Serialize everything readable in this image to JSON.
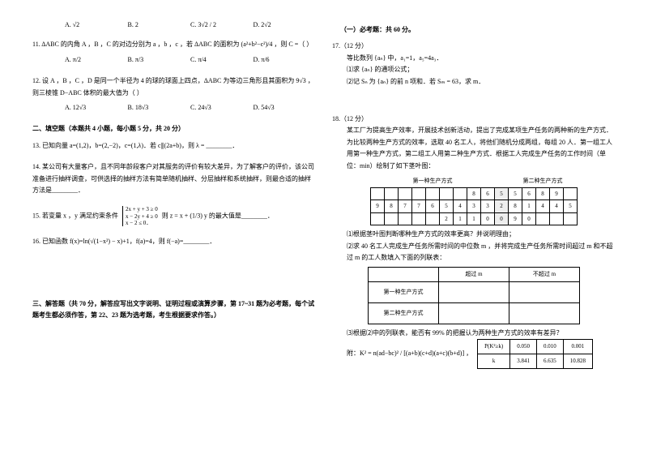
{
  "q10_opts": [
    "A.  √2",
    "B.  2",
    "C.  3√2 / 2",
    "D.  2√2"
  ],
  "q11": "11.  ΔABC 的内角 A ，B ，C 的对边分别为 a ，b ，c ，若 ΔABC 的面积为 (a²+b²−c²)/4 ，则 C =（   ）",
  "q11_opts": [
    "A.  π/2",
    "B.  π/3",
    "C.  π/4",
    "D.  π/6"
  ],
  "q12": "12.  设 A ，B ，C ，D 是同一个半径为 4 的球的球面上四点，ΔABC 为等边三角形且其面积为 9√3 ，则三棱锥 D−ABC 体积的最大值为（   ）",
  "q12_opts": [
    "A.  12√3",
    "B.  18√3",
    "C.  24√3",
    "D.  54√3"
  ],
  "sec2": "二、填空题（本题共 4 小题，每小题 5 分，共 20 分）",
  "q13": "13.  已知向量 a=(1,2)，b=(2,−2)，c=(1,λ)．若 c∥(2a+b)，则 λ = ________．",
  "q14": "14.  某公司有大量客户，且不同年龄段客户对其服务的评价有较大差异，为了解客户的评价，该公司准备进行抽样调查，可供选择的抽样方法有简单随机抽样、分层抽样和系统抽样，则最合适的抽样方法是________．",
  "q15a": "15.  若变量 x ，y 满足约束条件",
  "q15b": "则 z = x + (1/3) y 的最大值是________．",
  "q15_c1": "2x + y + 3 ≥ 0",
  "q15_c2": "x − 2y + 4 ≥ 0",
  "q15_c3": "x − 2 ≤ 0．",
  "q16": "16.  已知函数 f(x)=ln(√(1−x²) − x)+1，f(a)=4，则 f(−a)=________．",
  "sec3": "三、解答题（共 70 分，解答应写出文字说明、证明过程或演算步骤，第 17~31 题为必考题，每个试题考生都必须作答，第 22、23 题为选考题，考生根据要求作答。）",
  "r_head": "（一）必考题：共 60 分。",
  "q17": "17.（12 分）",
  "q17_body": "等比数列 {aₙ} 中，a₁=1，a₅=4a₃．",
  "q17_1": "⑴求 {aₙ} 的通项公式；",
  "q17_2": "⑵记 Sₙ 为 {aₙ} 的前 n 项和．若 Sₘ = 63，求 m．",
  "q18": "18.（12 分）",
  "q18_body": "某工厂为提高生产效率，开展技术创新活动，提出了完成某项生产任务的两种新的生产方式．为比较两种生产方式的效率，选取 40 名工人，将他们随机分成两组，每组 20 人．第一组工人用第一种生产方式，第二组工人用第二种生产方式．根据工人完成生产任务的工作时间（单位：min）绘制了如下茎叶图：",
  "stem_h_l": "第一种生产方式",
  "stem_h_r": "第二种生产方式",
  "stem_rows": [
    [
      "",
      "",
      "",
      "",
      "",
      "",
      "",
      "8",
      "6",
      "5",
      "5",
      "6",
      "8",
      "9",
      ""
    ],
    [
      "9",
      "8",
      "7",
      "7",
      "6",
      "5",
      "4",
      "3",
      "3",
      "2",
      "8",
      "1",
      "4",
      "4",
      "5"
    ],
    [
      "",
      "",
      "",
      "",
      "",
      "2",
      "1",
      "1",
      "0",
      "0",
      "9",
      "0",
      "",
      "",
      ""
    ]
  ],
  "q18_1": "⑴根据茎叶图判断哪种生产方式的效率更高？并说明理由；",
  "q18_2": "⑵求 40 名工人完成生产任务所需时间的中位数 m ，并将完成生产任务所需时间超过 m 和不超过 m 的工人数填入下面的列联表：",
  "tbl_h1": "超过 m",
  "tbl_h2": "不超过 m",
  "tbl_r1": "第一种生产方式",
  "tbl_r2": "第二种生产方式",
  "q18_3": "⑶根据⑵中的列联表，能否有 99% 的把握认为两种生产方式的效率有差异？",
  "q18_app1": "附：K² = n(ad−bc)² / [(a+b)(c+d)(a+c)(b+d)] ，",
  "ktbl_h": [
    "P(K²≥k)",
    "0.050",
    "0.010",
    "0.001"
  ],
  "ktbl_r": [
    "k",
    "3.841",
    "6.635",
    "10.828"
  ]
}
